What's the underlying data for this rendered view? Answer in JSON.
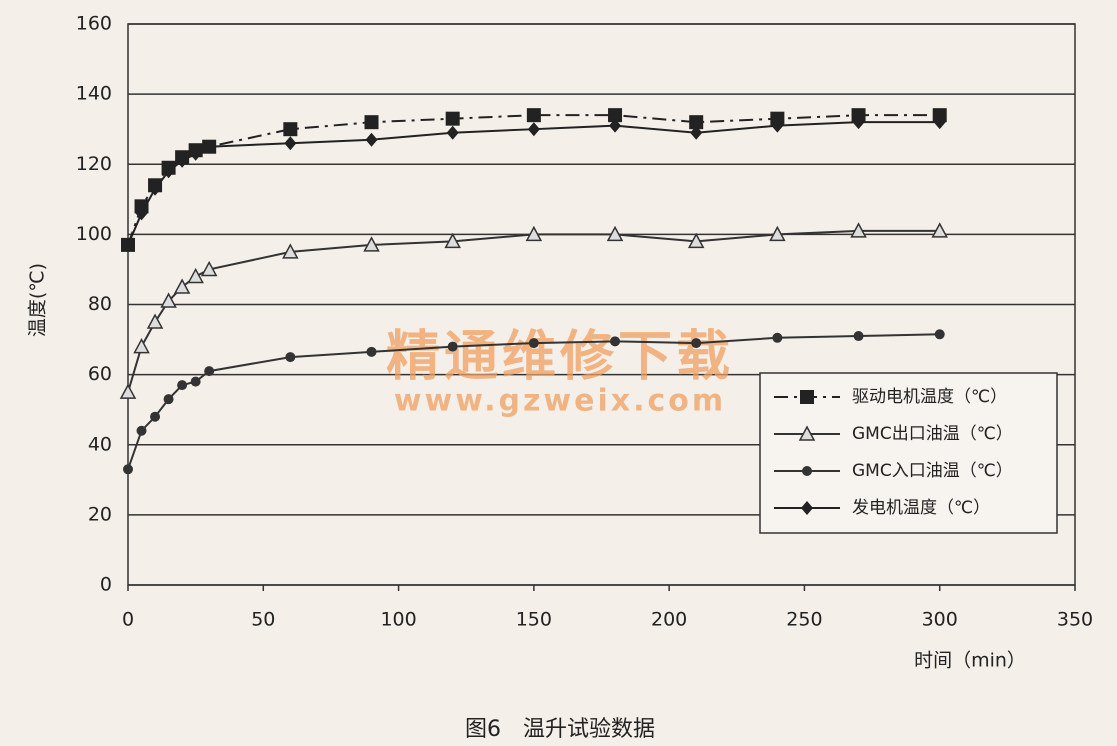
{
  "chart_data": {
    "type": "line",
    "caption": "图6　温升试验数据",
    "xlabel": "时间（min）",
    "ylabel": "温度(℃)",
    "annotations": [
      "精通维修下载",
      "www.gzweix.com"
    ],
    "x": [
      0,
      5,
      10,
      15,
      20,
      25,
      30,
      60,
      90,
      120,
      150,
      180,
      210,
      240,
      270,
      300
    ],
    "series": [
      {
        "name": "驱动电机温度（℃）",
        "color": "#222222",
        "dash": "dash-dot",
        "marker": "square",
        "values": [
          97,
          108,
          114,
          119,
          122,
          124,
          125,
          130,
          132,
          133,
          134,
          134,
          132,
          133,
          134,
          134
        ]
      },
      {
        "name": "GMC出口油温（℃）",
        "color": "#333333",
        "dash": "solid",
        "marker": "triangle",
        "values": [
          55,
          68,
          75,
          81,
          85,
          88,
          90,
          95,
          97,
          98,
          100,
          100,
          98,
          100,
          101,
          101
        ]
      },
      {
        "name": "GMC入口油温（℃）",
        "color": "#333333",
        "dash": "solid",
        "marker": "circle",
        "values": [
          33,
          44,
          48,
          53,
          57,
          58,
          61,
          65,
          66.5,
          68,
          69,
          69.5,
          69,
          70.5,
          71,
          71.5
        ]
      },
      {
        "name": "发电机温度（℃）",
        "color": "#222222",
        "dash": "solid",
        "marker": "diamond",
        "values": [
          97,
          106,
          113,
          118,
          121,
          123,
          125,
          126,
          127,
          129,
          130,
          131,
          129,
          131,
          132,
          132
        ]
      }
    ],
    "xlim": [
      0,
      350
    ],
    "xticks": [
      0,
      50,
      100,
      150,
      200,
      250,
      300,
      350
    ],
    "ylim": [
      0,
      160
    ],
    "yticks": [
      0,
      20,
      40,
      60,
      80,
      100,
      120,
      140,
      160
    ],
    "grid": true,
    "legend": "lower right"
  }
}
